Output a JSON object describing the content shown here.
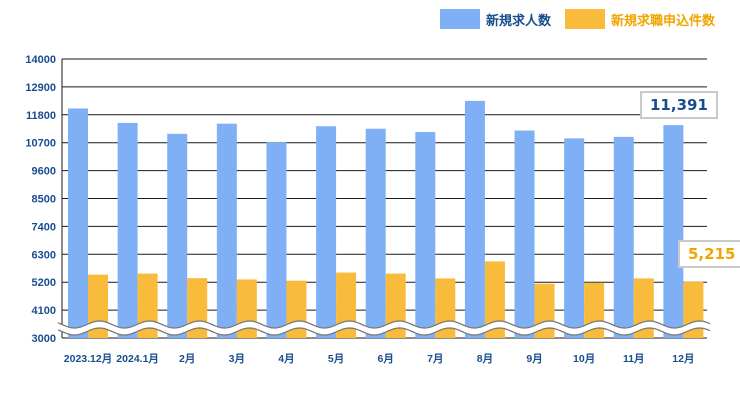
{
  "chart_data": {
    "type": "bar",
    "title": "",
    "xlabel": "",
    "ylabel": "",
    "categories": [
      "2023.12月",
      "2024.1月",
      "2月",
      "3月",
      "4月",
      "5月",
      "6月",
      "7月",
      "8月",
      "9月",
      "10月",
      "11月",
      "12月"
    ],
    "series": [
      {
        "name": "新規求人数",
        "color": "#7fb0f5",
        "values": [
          12050,
          11480,
          11050,
          11450,
          10720,
          11350,
          11250,
          11120,
          12350,
          11180,
          10870,
          10930,
          11391
        ]
      },
      {
        "name": "新規求職申込件数",
        "color": "#f9bb3c",
        "values": [
          5500,
          5540,
          5360,
          5310,
          5260,
          5580,
          5540,
          5350,
          6020,
          5140,
          5180,
          5350,
          5215
        ]
      }
    ],
    "yticks": [
      3000,
      4100,
      5200,
      6300,
      7400,
      8500,
      9600,
      10700,
      11800,
      12900,
      14000
    ],
    "yticks_labels": [
      "3000",
      "4100",
      "5200",
      "6300",
      "7400",
      "8500",
      "9600",
      "10700",
      "11800",
      "12900",
      "14000"
    ],
    "ylim": [
      3000,
      14000
    ],
    "axis_break": true,
    "grid": true,
    "legend_position": "top-right",
    "annotations": [
      {
        "series": 0,
        "category": "12月",
        "text": "11,391"
      },
      {
        "series": 1,
        "category": "12月",
        "text": "5,215"
      }
    ]
  }
}
